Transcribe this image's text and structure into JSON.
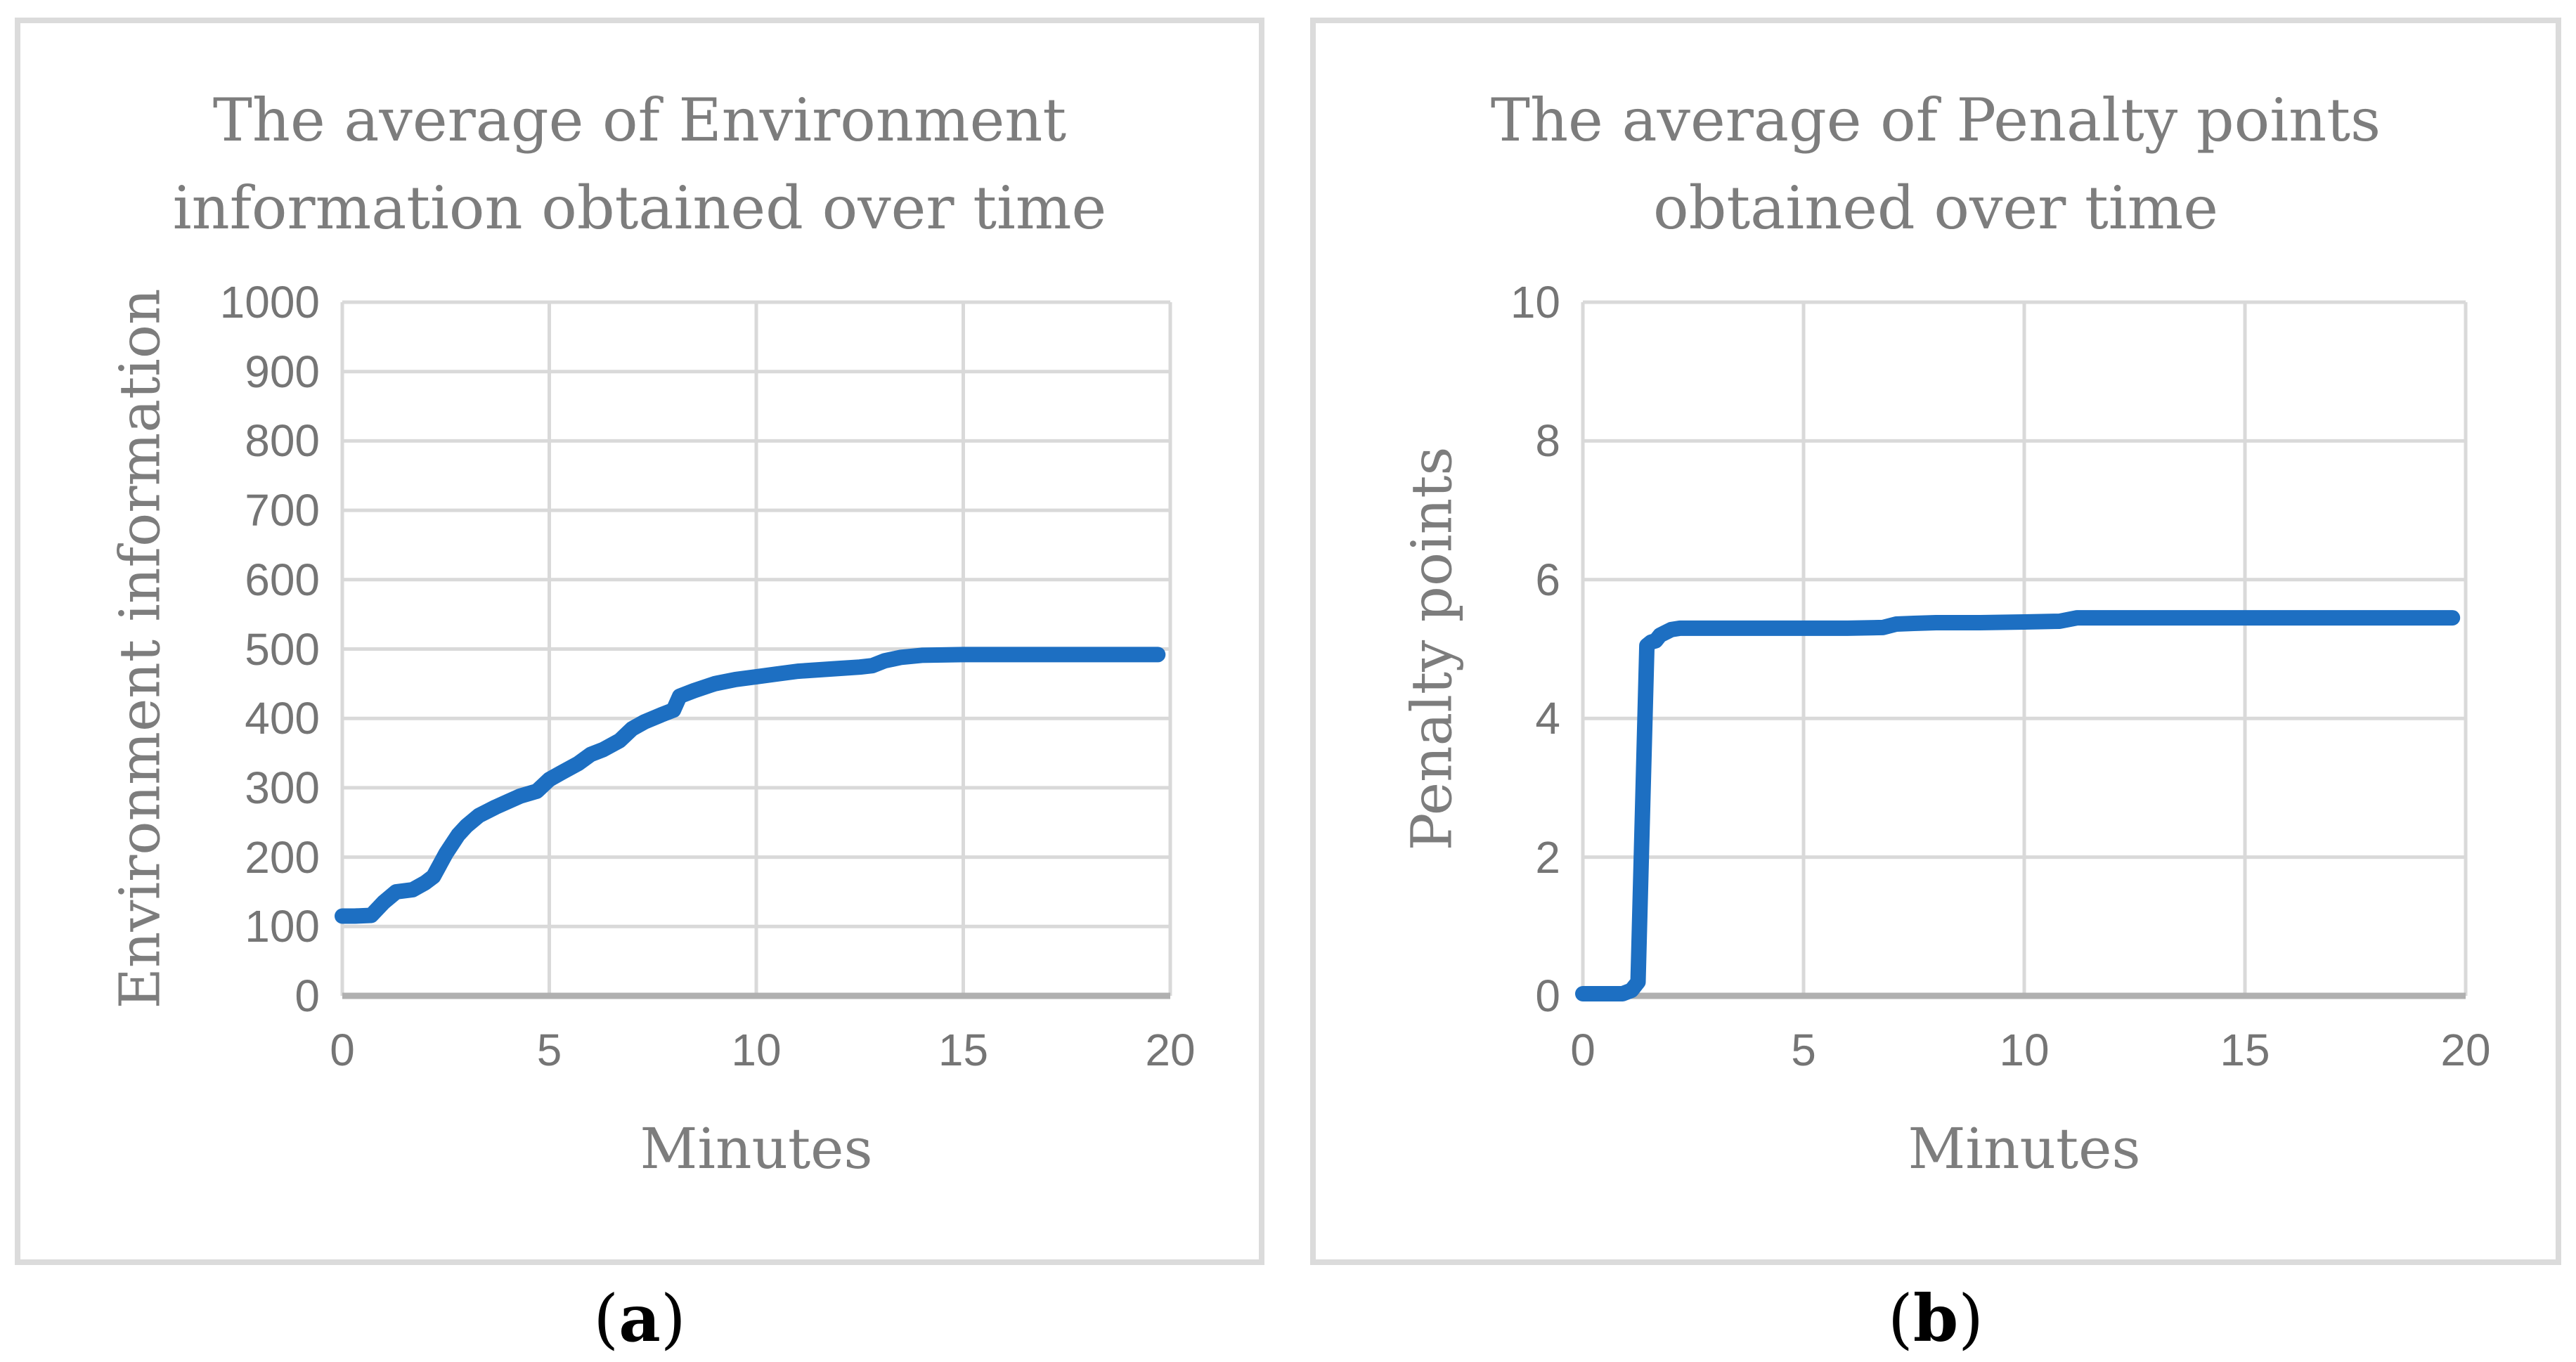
{
  "colors": {
    "line_blue": "#1D6FC2",
    "grid": "#D9D9D9",
    "axis": "#B0B0B0",
    "panel_border": "#DBDBDB",
    "title_gray": "#7D7D7D",
    "tick_gray": "#757575",
    "caption_black": "#000000"
  },
  "captions": {
    "a": {
      "open": "(",
      "letter": "a",
      "close": ")"
    },
    "b": {
      "open": "(",
      "letter": "b",
      "close": ")"
    }
  },
  "chart_data": [
    {
      "type": "line",
      "title": "The average of Environment information obtained over time",
      "title_lines": [
        "The average of Environment",
        "information obtained over time"
      ],
      "xlabel": "Minutes",
      "ylabel": "Environment information",
      "xlim": [
        0,
        20
      ],
      "ylim": [
        0,
        1000
      ],
      "xticks": [
        0,
        5,
        10,
        15,
        20
      ],
      "yticks": [
        0,
        100,
        200,
        300,
        400,
        500,
        600,
        700,
        800,
        900,
        1000
      ],
      "grid": true,
      "legend": "none",
      "series": [
        {
          "name": "Environment information",
          "color": "#1D6FC2",
          "points": [
            [
              0,
              115
            ],
            [
              0.3,
              115
            ],
            [
              0.7,
              116
            ],
            [
              1.0,
              135
            ],
            [
              1.3,
              150
            ],
            [
              1.7,
              153
            ],
            [
              2.0,
              163
            ],
            [
              2.2,
              172
            ],
            [
              2.5,
              205
            ],
            [
              2.8,
              232
            ],
            [
              3.0,
              245
            ],
            [
              3.3,
              260
            ],
            [
              3.7,
              272
            ],
            [
              4.0,
              280
            ],
            [
              4.3,
              288
            ],
            [
              4.7,
              295
            ],
            [
              5.0,
              312
            ],
            [
              5.3,
              322
            ],
            [
              5.7,
              335
            ],
            [
              6.0,
              348
            ],
            [
              6.3,
              355
            ],
            [
              6.7,
              368
            ],
            [
              7.0,
              385
            ],
            [
              7.3,
              395
            ],
            [
              7.7,
              405
            ],
            [
              8.0,
              412
            ],
            [
              8.15,
              432
            ],
            [
              8.5,
              440
            ],
            [
              9.0,
              450
            ],
            [
              9.5,
              456
            ],
            [
              10.0,
              460
            ],
            [
              10.5,
              464
            ],
            [
              11.0,
              468
            ],
            [
              11.5,
              470
            ],
            [
              12.0,
              472
            ],
            [
              12.5,
              474
            ],
            [
              12.8,
              476
            ],
            [
              13.1,
              483
            ],
            [
              13.5,
              488
            ],
            [
              14.0,
              491
            ],
            [
              15.0,
              492
            ],
            [
              16.0,
              492
            ],
            [
              17.0,
              492
            ],
            [
              18.0,
              492
            ],
            [
              19.0,
              492
            ],
            [
              19.7,
              492
            ]
          ]
        }
      ]
    },
    {
      "type": "line",
      "title": "The average of Penalty points obtained over time",
      "title_lines": [
        "The average of Penalty points",
        "obtained over time"
      ],
      "xlabel": "Minutes",
      "ylabel": "Penalty points",
      "xlim": [
        0,
        20
      ],
      "ylim": [
        0,
        10
      ],
      "xticks": [
        0,
        5,
        10,
        15,
        20
      ],
      "yticks": [
        0,
        2,
        4,
        6,
        8,
        10
      ],
      "grid": true,
      "legend": "none",
      "series": [
        {
          "name": "Penalty points",
          "color": "#1D6FC2",
          "points": [
            [
              0,
              0.03
            ],
            [
              0.9,
              0.03
            ],
            [
              1.1,
              0.08
            ],
            [
              1.25,
              0.2
            ],
            [
              1.45,
              5.05
            ],
            [
              1.55,
              5.1
            ],
            [
              1.65,
              5.12
            ],
            [
              1.75,
              5.2
            ],
            [
              2.0,
              5.28
            ],
            [
              2.2,
              5.3
            ],
            [
              3.0,
              5.3
            ],
            [
              4.0,
              5.3
            ],
            [
              5.0,
              5.3
            ],
            [
              6.0,
              5.3
            ],
            [
              6.8,
              5.31
            ],
            [
              7.1,
              5.36
            ],
            [
              7.5,
              5.37
            ],
            [
              8.0,
              5.38
            ],
            [
              9.0,
              5.38
            ],
            [
              10.0,
              5.39
            ],
            [
              10.8,
              5.4
            ],
            [
              11.2,
              5.45
            ],
            [
              12.0,
              5.45
            ],
            [
              13.0,
              5.45
            ],
            [
              14.0,
              5.45
            ],
            [
              15.0,
              5.45
            ],
            [
              16.0,
              5.45
            ],
            [
              17.0,
              5.45
            ],
            [
              18.0,
              5.45
            ],
            [
              19.0,
              5.45
            ],
            [
              19.7,
              5.45
            ]
          ]
        }
      ]
    }
  ]
}
